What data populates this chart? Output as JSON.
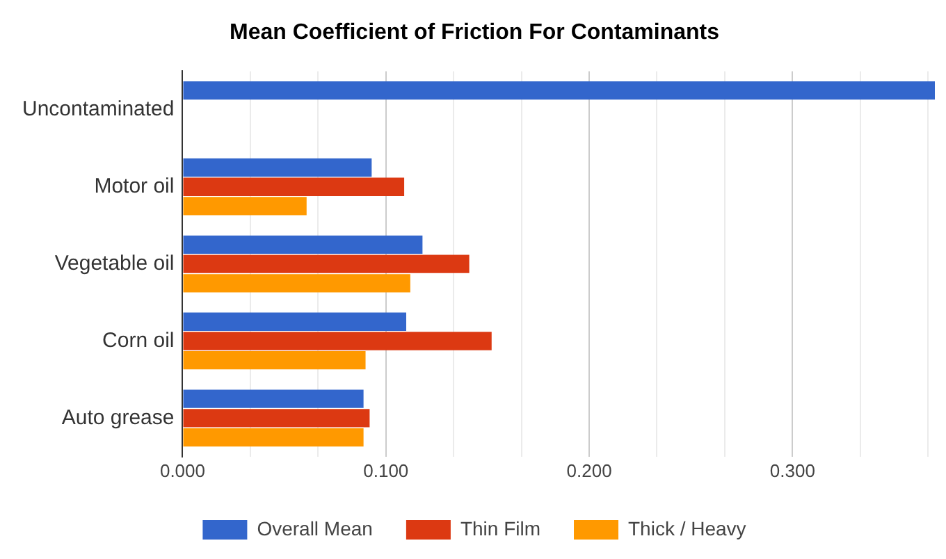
{
  "chart_data": {
    "type": "bar",
    "orientation": "horizontal",
    "title": "Mean Coefficient of Friction For Contaminants",
    "categories": [
      "Uncontaminated",
      "Motor oil",
      "Vegetable oil",
      "Corn oil",
      "Auto grease"
    ],
    "series": [
      {
        "name": "Overall Mean",
        "color": "#3366cc",
        "values": [
          0.37,
          0.093,
          0.118,
          0.11,
          0.089
        ]
      },
      {
        "name": "Thin Film",
        "color": "#dc3912",
        "values": [
          null,
          0.109,
          0.141,
          0.152,
          0.092
        ]
      },
      {
        "name": "Thick / Heavy",
        "color": "#ff9900",
        "values": [
          null,
          0.061,
          0.112,
          0.09,
          0.089
        ]
      }
    ],
    "xlim": [
      0,
      0.37
    ],
    "xticks": [
      {
        "value": 0,
        "label": "0.000"
      },
      {
        "value": 0.0333,
        "label": null
      },
      {
        "value": 0.0667,
        "label": null
      },
      {
        "value": 0.1,
        "label": "0.100"
      },
      {
        "value": 0.1333,
        "label": null
      },
      {
        "value": 0.1667,
        "label": null
      },
      {
        "value": 0.2,
        "label": "0.200"
      },
      {
        "value": 0.2333,
        "label": null
      },
      {
        "value": 0.2667,
        "label": null
      },
      {
        "value": 0.3,
        "label": "0.300"
      },
      {
        "value": 0.3333,
        "label": null
      },
      {
        "value": 0.3667,
        "label": null
      }
    ],
    "grid": "x",
    "legend": "bottom"
  }
}
